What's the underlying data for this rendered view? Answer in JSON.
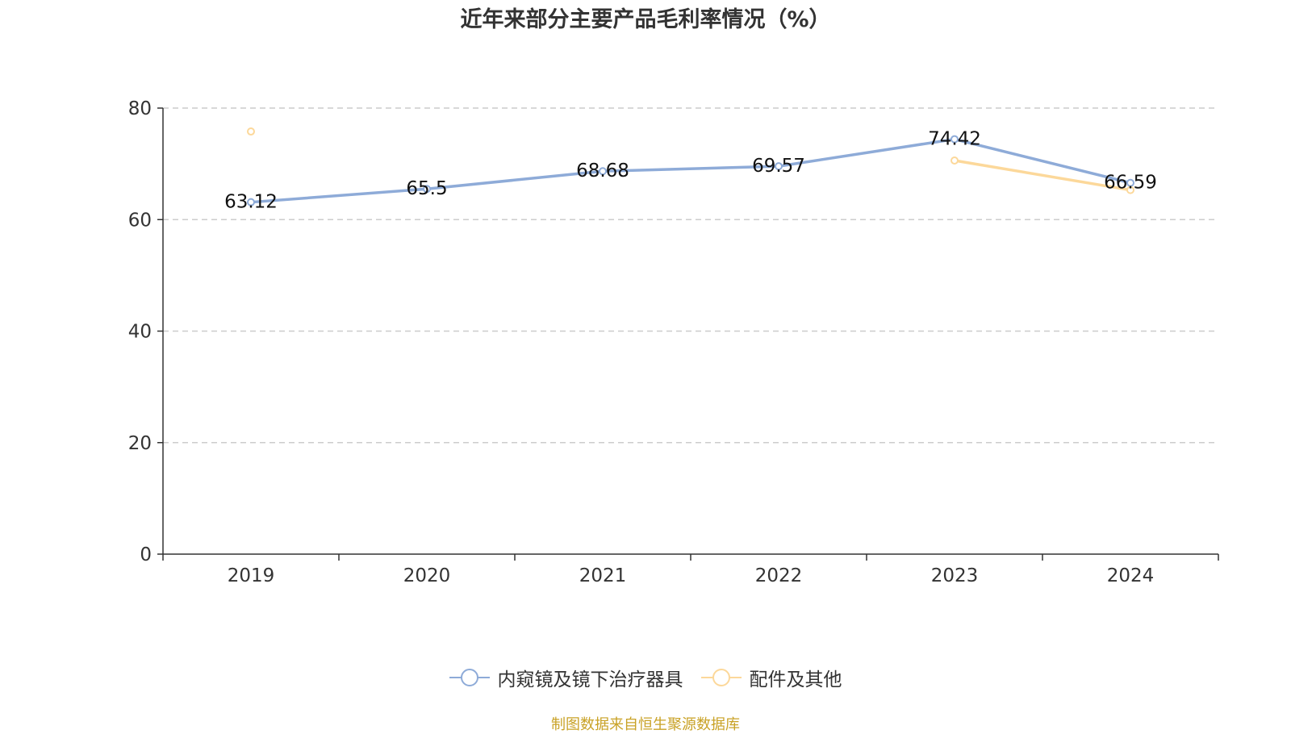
{
  "chart_data": {
    "type": "line",
    "title": "近年来部分主要产品毛利率情况（%）",
    "categories": [
      "2019",
      "2020",
      "2021",
      "2022",
      "2023",
      "2024"
    ],
    "ylim": [
      0,
      80
    ],
    "yticks": [
      0,
      20,
      40,
      60,
      80
    ],
    "grid": "horizontal dashed",
    "legend_position": "bottom",
    "series": [
      {
        "name": "内窥镜及镜下治疗器具",
        "color": "#8eabd8",
        "values": [
          63.12,
          65.5,
          68.68,
          69.57,
          74.42,
          66.59
        ],
        "labels": [
          "63.12",
          "65.5",
          "68.68",
          "69.57",
          "74.42",
          "66.59"
        ]
      },
      {
        "name": "配件及其他",
        "color": "#fcd89a",
        "values": [
          75.8,
          null,
          null,
          null,
          70.6,
          65.3
        ]
      }
    ]
  },
  "footer": {
    "source": "制图数据来自恒生聚源数据库"
  }
}
